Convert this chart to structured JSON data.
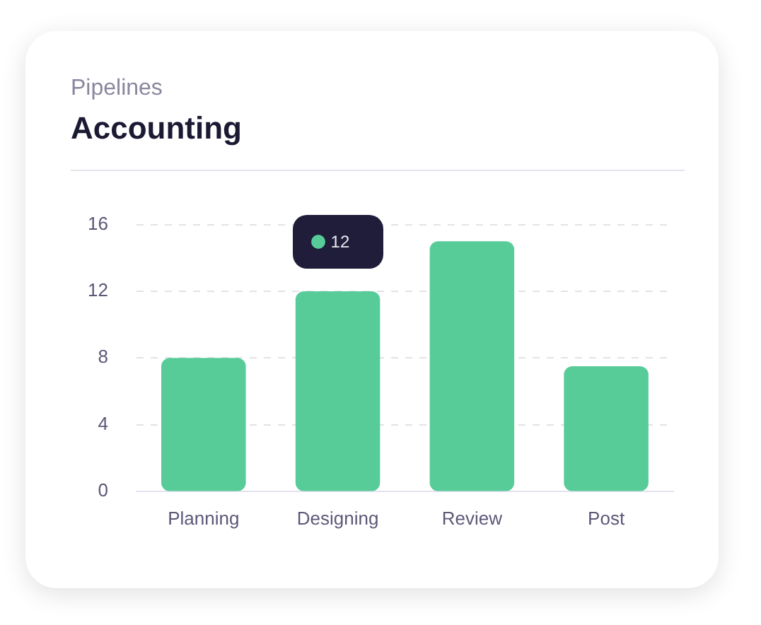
{
  "chart_data": {
    "type": "bar",
    "title": "Accounting",
    "subtitle": "Pipelines",
    "categories": [
      "Planning",
      "Designing",
      "Review",
      "Post"
    ],
    "values": [
      8,
      12,
      15,
      7.5
    ],
    "color": "#57cc99",
    "ylim": [
      0,
      16
    ],
    "yticks": [
      0,
      4,
      8,
      12,
      16
    ],
    "grid": "y",
    "annotations": [
      {
        "text": "12",
        "x": "Designing",
        "y": 12
      }
    ]
  }
}
